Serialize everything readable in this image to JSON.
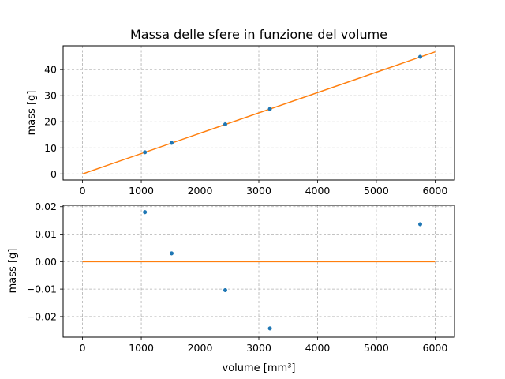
{
  "chart_data": [
    {
      "type": "scatter",
      "title": "Massa delle sfere in funzione del volume",
      "xlabel": "",
      "ylabel": "mass [g]",
      "xlim": [
        -330,
        6330
      ],
      "ylim": [
        -2.34,
        49.14
      ],
      "xticks": [
        0,
        1000,
        2000,
        3000,
        4000,
        5000,
        6000
      ],
      "yticks": [
        0,
        10,
        20,
        30,
        40
      ],
      "grid": true,
      "series": [
        {
          "kind": "points",
          "color": "#1f77b4",
          "x": [
            1062,
            1516,
            2429,
            3189,
            5746
          ],
          "y": [
            8.3,
            11.9,
            19.0,
            24.9,
            44.9
          ]
        },
        {
          "kind": "line",
          "color": "#ff7f0e",
          "x": [
            0,
            6000
          ],
          "y": [
            0,
            46.8
          ]
        }
      ]
    },
    {
      "type": "scatter",
      "title": "",
      "xlabel": "volume [mm³]",
      "ylabel": "mass [g]",
      "xlim": [
        -330,
        6330
      ],
      "ylim": [
        -0.0275,
        0.0205
      ],
      "xticks": [
        0,
        1000,
        2000,
        3000,
        4000,
        5000,
        6000
      ],
      "yticks": [
        -0.02,
        -0.01,
        0.0,
        0.01,
        0.02
      ],
      "ytick_labels": [
        "−0.02",
        "−0.01",
        "0.00",
        "0.01",
        "0.02"
      ],
      "grid": true,
      "series": [
        {
          "kind": "points",
          "color": "#1f77b4",
          "x": [
            1062,
            1516,
            2429,
            3189,
            5746
          ],
          "y": [
            0.018,
            0.003,
            -0.0104,
            -0.0243,
            0.0136
          ],
          "yerr": 0.0007
        },
        {
          "kind": "line",
          "color": "#ff7f0e",
          "x": [
            0,
            6000
          ],
          "y": [
            0,
            0
          ]
        }
      ]
    }
  ]
}
